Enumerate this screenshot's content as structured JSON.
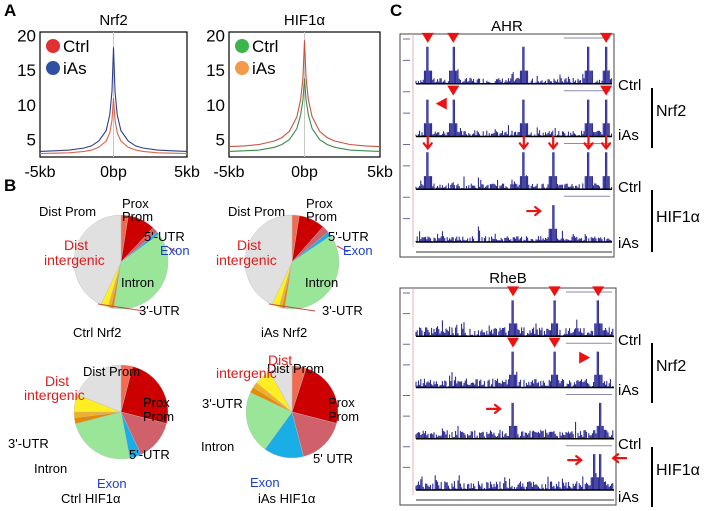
{
  "panels": {
    "a": "A",
    "b": "B",
    "c": "C"
  },
  "chart_data": [
    {
      "type": "line",
      "title": "Nrf2",
      "x": [
        -5000,
        -4000,
        -3000,
        -2000,
        -1500,
        -1000,
        -500,
        -250,
        -100,
        0,
        100,
        250,
        500,
        1000,
        1500,
        2000,
        3000,
        4000,
        5000
      ],
      "xlabel": "",
      "x_tick_labels": [
        "-5kb",
        "0bp",
        "5kb"
      ],
      "xlim": [
        -5000,
        5000
      ],
      "ylim": [
        2.5,
        20.5
      ],
      "y_ticks": [
        5,
        10,
        15,
        20
      ],
      "legend": {
        "placement": "top-left"
      },
      "series": [
        {
          "name": "Ctrl",
          "color": "#e03030",
          "line_color": "#d9664a",
          "values": [
            3.0,
            3.05,
            3.1,
            3.3,
            3.5,
            3.9,
            4.8,
            6.0,
            7.8,
            11.0,
            7.8,
            6.0,
            4.8,
            3.9,
            3.5,
            3.3,
            3.1,
            3.05,
            3.0
          ]
        },
        {
          "name": "iAs",
          "color": "#2e4fa3",
          "line_color": "#2e3f8a",
          "values": [
            3.3,
            3.4,
            3.5,
            3.8,
            4.1,
            4.8,
            6.3,
            8.6,
            12.0,
            18.3,
            12.0,
            8.6,
            6.3,
            4.8,
            4.1,
            3.8,
            3.5,
            3.4,
            3.3
          ]
        }
      ]
    },
    {
      "type": "line",
      "title": "HIF1α",
      "x": [
        -5000,
        -4000,
        -3000,
        -2000,
        -1500,
        -1000,
        -500,
        -250,
        -100,
        0,
        100,
        250,
        500,
        1000,
        1500,
        2000,
        3000,
        4000,
        5000
      ],
      "xlabel": "",
      "x_tick_labels": [
        "-5kb",
        "0bp",
        "5kb"
      ],
      "xlim": [
        -5000,
        5000
      ],
      "ylim": [
        2.5,
        20.5
      ],
      "y_ticks": [
        5,
        10,
        15,
        20
      ],
      "legend": {
        "placement": "top-left"
      },
      "series": [
        {
          "name": "Ctrl",
          "color": "#3bb54a",
          "line_color": "#3e8a4a",
          "values": [
            3.3,
            3.4,
            3.5,
            3.9,
            4.3,
            5.0,
            6.6,
            8.6,
            10.8,
            13.8,
            10.8,
            8.6,
            6.6,
            5.0,
            4.3,
            3.9,
            3.5,
            3.4,
            3.3
          ]
        },
        {
          "name": "iAs",
          "color": "#f39a4a",
          "line_color": "#c8533c",
          "values": [
            4.0,
            4.1,
            4.3,
            4.8,
            5.3,
            6.2,
            8.3,
            10.8,
            14.0,
            19.3,
            14.0,
            10.8,
            8.3,
            6.2,
            5.3,
            4.8,
            4.3,
            4.1,
            4.0
          ]
        }
      ]
    },
    {
      "type": "pie",
      "title": "Ctrl Nrf2",
      "categories": [
        "Dist Prom",
        "Prox Prom",
        "5'-UTR",
        "Exon",
        "Intron",
        "3'-UTR (a)",
        "3'-UTR (b)",
        "3'-UTR (c)",
        "Dist intergenic"
      ],
      "values": [
        2.5,
        9.5,
        2.0,
        1.0,
        37.5,
        1.0,
        1.0,
        2.5,
        43.0
      ]
    },
    {
      "type": "pie",
      "title": "iAs Nrf2",
      "categories": [
        "Dist Prom",
        "Prox Prom",
        "5'-UTR",
        "Exon",
        "Intron",
        "3'-UTR (a)",
        "3'-UTR (b)",
        "3'-UTR (c)",
        "Dist intergenic"
      ],
      "values": [
        2.5,
        9.0,
        2.5,
        1.5,
        37.0,
        1.0,
        1.0,
        2.5,
        43.0
      ]
    },
    {
      "type": "pie",
      "title": "Ctrl HIF1α",
      "categories": [
        "Dist Prom",
        "Prox Prom",
        "5'-UTR",
        "Exon",
        "Intron",
        "3'-UTR (a)",
        "3'-UTR (b)",
        "3'-UTR (c)",
        "Dist intergenic"
      ],
      "values": [
        4.0,
        25.0,
        14.0,
        4.0,
        24.0,
        2.0,
        2.0,
        6.0,
        19.0
      ]
    },
    {
      "type": "pie",
      "title": "iAs HIF1α",
      "categories": [
        "Dist Prom",
        "Prox Prom",
        "5'-UTR",
        "Exon",
        "Intron",
        "3'-UTR (a)",
        "3'-UTR (b)",
        "3'-UTR (c)",
        "Dist intergenic"
      ],
      "values": [
        5.0,
        24.0,
        17.0,
        14.0,
        22.0,
        2.0,
        2.0,
        6.0,
        8.0
      ]
    }
  ],
  "pie_colors": [
    "#f26a50",
    "#cc0000",
    "#d0606a",
    "#1aaee6",
    "#99e699",
    "#e68a00",
    "#f0b020",
    "#ffee22",
    "#e0e0e0"
  ],
  "pie_labels": {
    "ctrl_nrf2": {
      "dist_prom": "Dist Prom",
      "prox": "Prox",
      "prom": "Prom",
      "utr5": "5'-UTR",
      "exon": "Exon",
      "dist": "Dist",
      "intergenic": "intergenic",
      "intron": "Intron",
      "utr3": "3'-UTR",
      "caption": "Ctrl Nrf2"
    },
    "ias_nrf2": {
      "dist_prom": "Dist Prom",
      "prox": "Prox",
      "prom": "Prom",
      "utr5": "5'-UTR",
      "exon": "Exon",
      "dist": "Dist",
      "intergenic": "intergenic",
      "intron": "Intron",
      "utr3": "3'-UTR",
      "caption": "iAs Nrf2"
    },
    "ctrl_hif": {
      "dist_prom": "Dist Prom",
      "prox": "Prox",
      "prom": "Prom",
      "utr5": "5'-UTR",
      "exon": "Exon",
      "dist": "Dist",
      "intergenic": "intergenic",
      "intron": "Intron",
      "utr3": "3'-UTR",
      "caption": "Ctrl HIF1α"
    },
    "ias_hif": {
      "dist_prom": "Dist Prom",
      "prox": "Prox",
      "prom": "Prom",
      "utr5": "5' UTR",
      "exon": "Exon",
      "dist": "Dist",
      "intergenic": "intergenic",
      "intron": "Intron",
      "utr3": "3'-UTR",
      "caption": "iAs HIF1α"
    }
  },
  "label_colors": {
    "dist_intergenic": "#e01a1a",
    "exon": "#1a3fcf",
    "marker": "#ee1111",
    "track": "#1a1a8c"
  },
  "genome_browser": {
    "loci": [
      {
        "title": "AHR",
        "tracks": [
          {
            "label": "Ctrl",
            "peaks": [
              0.06,
              0.19,
              0.55,
              0.88,
              0.97
            ],
            "markers": [
              {
                "type": "down-triangle",
                "pos": 0.06
              },
              {
                "type": "down-triangle",
                "pos": 0.19
              },
              {
                "type": "down-triangle",
                "pos": 0.97
              }
            ]
          },
          {
            "label": "iAs",
            "peaks": [
              0.06,
              0.19,
              0.55,
              0.88,
              0.97
            ],
            "markers": [
              {
                "type": "left-triangle",
                "pos": 0.06
              },
              {
                "type": "down-triangle",
                "pos": 0.19
              },
              {
                "type": "down-triangle",
                "pos": 0.97
              }
            ]
          },
          {
            "label": "Ctrl",
            "peaks": [
              0.06,
              0.55,
              0.7,
              0.88,
              0.97
            ],
            "markers": [
              {
                "type": "down-arrow",
                "pos": 0.06
              },
              {
                "type": "down-arrow",
                "pos": 0.55
              },
              {
                "type": "down-arrow",
                "pos": 0.7
              },
              {
                "type": "down-arrow",
                "pos": 0.88
              },
              {
                "type": "down-arrow",
                "pos": 0.97
              }
            ]
          },
          {
            "label": "iAs",
            "peaks": [
              0.7
            ],
            "markers": [
              {
                "type": "right-arrow",
                "pos": 0.7
              }
            ]
          }
        ],
        "groups": [
          {
            "label": "Nrf2"
          },
          {
            "label": "HIF1α"
          }
        ]
      },
      {
        "title": "RheB",
        "tracks": [
          {
            "label": "Ctrl",
            "peaks": [
              0.49,
              0.7,
              0.92
            ],
            "markers": [
              {
                "type": "down-triangle",
                "pos": 0.49
              },
              {
                "type": "down-triangle",
                "pos": 0.7
              },
              {
                "type": "down-triangle",
                "pos": 0.92
              }
            ]
          },
          {
            "label": "iAs",
            "peaks": [
              0.49,
              0.7,
              0.92
            ],
            "markers": [
              {
                "type": "down-triangle",
                "pos": 0.49
              },
              {
                "type": "down-triangle",
                "pos": 0.7
              },
              {
                "type": "right-triangle",
                "pos": 0.92
              }
            ]
          },
          {
            "label": "Ctrl",
            "peaks": [
              0.49,
              0.93
            ],
            "markers": [
              {
                "type": "right-arrow",
                "pos": 0.49
              }
            ]
          },
          {
            "label": "iAs",
            "peaks": [
              0.9,
              0.93
            ],
            "markers": [
              {
                "type": "right-arrow",
                "pos": 0.9
              },
              {
                "type": "left-arrow",
                "pos": 0.93
              }
            ]
          }
        ],
        "groups": [
          {
            "label": "Nrf2"
          },
          {
            "label": "HIF1α"
          }
        ]
      }
    ]
  }
}
